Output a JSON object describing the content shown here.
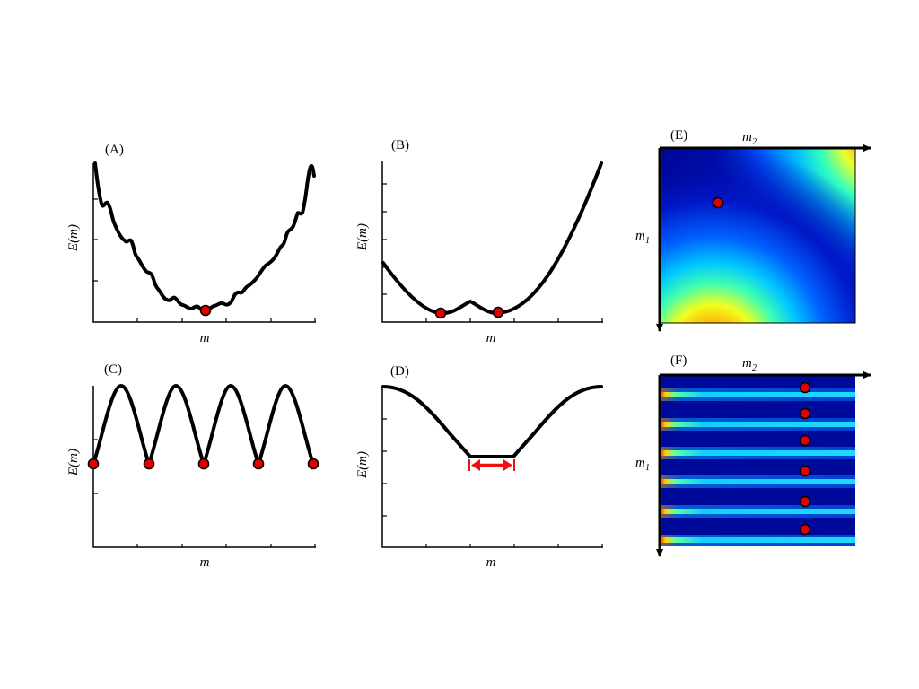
{
  "panels": {
    "A": {
      "label": "(A)",
      "xlabel": "m",
      "ylabel": "E(m)"
    },
    "B": {
      "label": "(B)",
      "xlabel": "m",
      "ylabel": "E(m)"
    },
    "C": {
      "label": "(C)",
      "xlabel": "m",
      "ylabel": "E(m)"
    },
    "D": {
      "label": "(D)",
      "xlabel": "m",
      "ylabel": "E(m)"
    },
    "E": {
      "label": "(E)",
      "xaxis": "m",
      "xaxis_sub": "2",
      "yaxis": "m",
      "yaxis_sub": "1"
    },
    "F": {
      "label": "(F)",
      "xaxis": "m",
      "xaxis_sub": "2",
      "yaxis": "m",
      "yaxis_sub": "1"
    }
  },
  "colors": {
    "curve": "#000000",
    "marker": "#e00000",
    "interval_arrow": "#ee1111"
  }
}
